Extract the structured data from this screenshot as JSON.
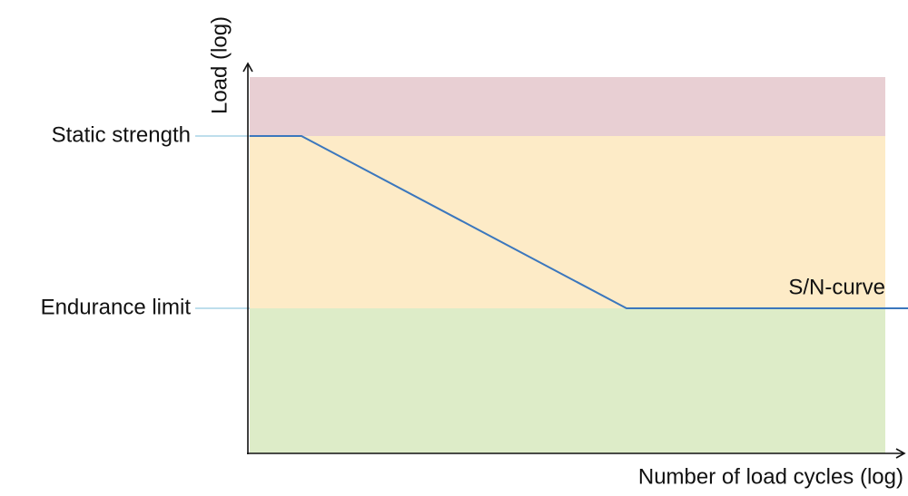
{
  "axes": {
    "y_label": "Load (log)",
    "x_label": "Number of load cycles (log)"
  },
  "levels": {
    "static_strength": "Static strength",
    "endurance_limit": "Endurance limit"
  },
  "curve_label": "S/N-curve"
}
